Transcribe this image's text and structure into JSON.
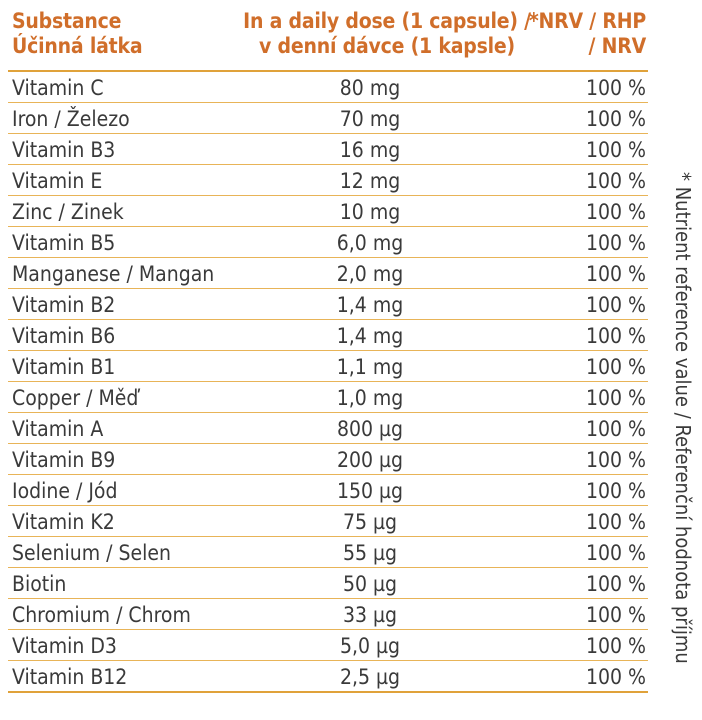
{
  "header": {
    "substance": "Substance\nÚčinná látka",
    "dose": "In a daily dose (1 capsule) /\nv denní dávce (1 kapsle)",
    "nrv": "*NRV / RHP\n/ NRV"
  },
  "rows": [
    {
      "substance": "Vitamin C",
      "dose": "80 mg",
      "nrv": "100 %"
    },
    {
      "substance": "Iron / Železo",
      "dose": "70 mg",
      "nrv": "100 %"
    },
    {
      "substance": "Vitamin B3",
      "dose": "16 mg",
      "nrv": "100 %"
    },
    {
      "substance": "Vitamin E",
      "dose": "12 mg",
      "nrv": "100 %"
    },
    {
      "substance": "Zinc / Zinek",
      "dose": "10 mg",
      "nrv": "100 %"
    },
    {
      "substance": "Vitamin B5",
      "dose": "6,0 mg",
      "nrv": "100 %"
    },
    {
      "substance": "Manganese / Mangan",
      "dose": "2,0 mg",
      "nrv": "100 %"
    },
    {
      "substance": "Vitamin B2",
      "dose": "1,4 mg",
      "nrv": "100 %"
    },
    {
      "substance": "Vitamin B6",
      "dose": "1,4 mg",
      "nrv": "100 %"
    },
    {
      "substance": "Vitamin B1",
      "dose": "1,1 mg",
      "nrv": "100 %"
    },
    {
      "substance": "Copper / Měď",
      "dose": "1,0 mg",
      "nrv": "100 %"
    },
    {
      "substance": "Vitamin A",
      "dose": "800 µg",
      "nrv": "100 %"
    },
    {
      "substance": "Vitamin B9",
      "dose": "200 µg",
      "nrv": "100 %"
    },
    {
      "substance": "Iodine / Jód",
      "dose": "150 µg",
      "nrv": "100 %"
    },
    {
      "substance": "Vitamin K2",
      "dose": "75 µg",
      "nrv": "100 %"
    },
    {
      "substance": "Selenium / Selen",
      "dose": "55 µg",
      "nrv": "100 %"
    },
    {
      "substance": "Biotin",
      "dose": "50 µg",
      "nrv": "100 %"
    },
    {
      "substance": "Chromium / Chrom",
      "dose": "33 µg",
      "nrv": "100 %"
    },
    {
      "substance": "Vitamin D3",
      "dose": "5,0 µg",
      "nrv": "100 %"
    },
    {
      "substance": "Vitamin B12",
      "dose": "2,5 µg",
      "nrv": "100 %"
    }
  ],
  "footnote": "* Nutrient reference value / Referenční hodnota příjmu",
  "colors": {
    "heading": "#d06e2a",
    "rule": "#e0a23a",
    "text": "#3a3a3a"
  }
}
